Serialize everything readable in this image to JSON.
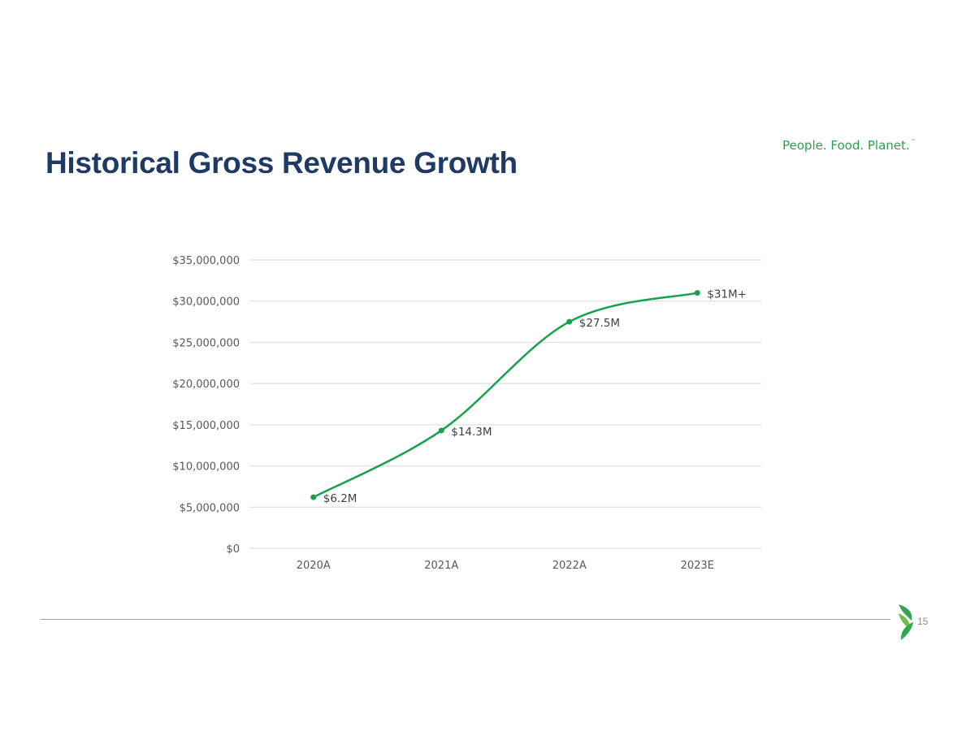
{
  "slide": {
    "title": "Historical Gross Revenue Growth",
    "tagline": "People. Food. Planet.",
    "tagline_mark": "™",
    "page_number": "15"
  },
  "colors": {
    "title": "#1f3a64",
    "series": "#16a24a",
    "gridline": "#d9d9d9",
    "tick_text": "#595959",
    "label_text": "#404040",
    "brand_green": "#2f9e4a"
  },
  "chart_data": {
    "type": "line",
    "title": "",
    "xlabel": "",
    "ylabel": "",
    "categories": [
      "2020A",
      "2021A",
      "2022A",
      "2023E"
    ],
    "series": [
      {
        "values": [
          6200000,
          14300000,
          27500000,
          31000000
        ],
        "data_labels": [
          "$6.2M",
          "$14.3M",
          "$27.5M",
          "$31M+"
        ],
        "smooth": true,
        "markers": true
      }
    ],
    "ylim": [
      0,
      35000000
    ],
    "y_ticks": [
      0,
      5000000,
      10000000,
      15000000,
      20000000,
      25000000,
      30000000,
      35000000
    ],
    "y_tick_labels": [
      "$0",
      "$5,000,000",
      "$10,000,000",
      "$15,000,000",
      "$20,000,000",
      "$25,000,000",
      "$30,000,000",
      "$35,000,000"
    ],
    "grid": true,
    "legend": "none"
  }
}
